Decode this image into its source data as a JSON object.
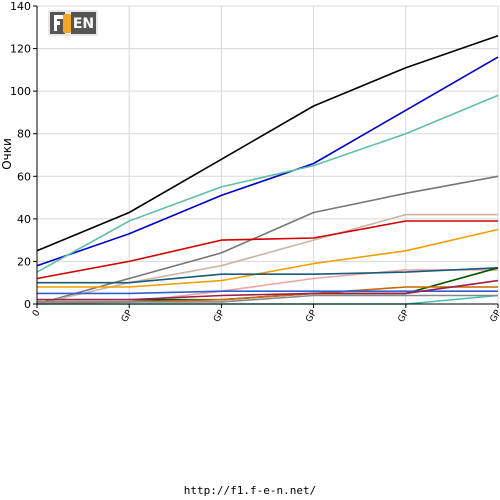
{
  "logo": {
    "text": "F1EN",
    "accent": "#f5a623"
  },
  "footer": {
    "url": "http://f1.f-e-n.net/"
  },
  "chart_data": {
    "type": "line",
    "title": "",
    "xlabel": "",
    "ylabel": "Очки",
    "ylim": [
      0,
      140
    ],
    "yticks": [
      0,
      20,
      40,
      60,
      80,
      100,
      120,
      140
    ],
    "grid": true,
    "x_tick_labels": [
      "0",
      "GP",
      "GP",
      "GP",
      "GP",
      "GP"
    ],
    "x": [
      0,
      1,
      2,
      3,
      4,
      5
    ],
    "series": [
      {
        "color": "#000000",
        "values": [
          25,
          43,
          68,
          93,
          111,
          126
        ]
      },
      {
        "color": "#0000cc",
        "values": [
          18,
          33,
          51,
          66,
          91,
          116
        ]
      },
      {
        "color": "#5fbfa7",
        "values": [
          15,
          39,
          55,
          65,
          80,
          98
        ]
      },
      {
        "color": "#777777",
        "values": [
          0,
          12,
          24,
          43,
          52,
          60
        ]
      },
      {
        "color": "#c8b6a8",
        "values": [
          0,
          10,
          18,
          30,
          42,
          42
        ]
      },
      {
        "color": "#d40000",
        "values": [
          12,
          20,
          30,
          31,
          39,
          39
        ]
      },
      {
        "color": "#f0a000",
        "values": [
          8,
          8,
          11,
          19,
          25,
          35
        ]
      },
      {
        "color": "#e8a8a8",
        "values": [
          0,
          1,
          6,
          12,
          16,
          16
        ]
      },
      {
        "color": "#1a5a7a",
        "values": [
          10,
          10,
          14,
          14,
          15,
          17
        ]
      },
      {
        "color": "#005500",
        "values": [
          2,
          2,
          2,
          5,
          5,
          17
        ]
      },
      {
        "color": "#cc6600",
        "values": [
          1,
          1,
          2,
          5,
          8,
          8
        ]
      },
      {
        "color": "#3060d0",
        "values": [
          5,
          5,
          6,
          6,
          6,
          6
        ]
      },
      {
        "color": "#9a2050",
        "values": [
          2,
          2,
          4,
          5,
          5,
          11
        ]
      },
      {
        "color": "#40c0b0",
        "values": [
          0,
          0,
          0,
          0,
          0,
          4
        ]
      },
      {
        "color": "#888888",
        "values": [
          1,
          1,
          1,
          4,
          4,
          4
        ]
      }
    ]
  }
}
